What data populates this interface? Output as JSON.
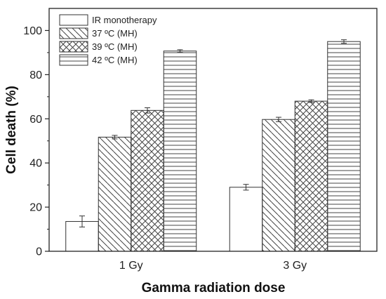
{
  "chart_data": {
    "type": "bar",
    "title": "",
    "xlabel": "Gamma radiation dose",
    "ylabel": "Cell death (%)",
    "ylim": [
      0,
      110
    ],
    "yticks": [
      0,
      20,
      40,
      60,
      80,
      100
    ],
    "categories": [
      "1 Gy",
      "3 Gy"
    ],
    "series": [
      {
        "name": "IR monotherapy",
        "pattern": "none",
        "values": [
          13.5,
          29.0
        ],
        "errors": [
          2.5,
          1.3
        ]
      },
      {
        "name": "37 ºC (MH)",
        "pattern": "diagonal-down",
        "values": [
          51.7,
          59.7
        ],
        "errors": [
          0.8,
          1.0
        ]
      },
      {
        "name": "39 ºC (MH)",
        "pattern": "crosshatch",
        "values": [
          63.8,
          68.0
        ],
        "errors": [
          1.2,
          0.6
        ]
      },
      {
        "name": "42 ºC (MH)",
        "pattern": "horizontal",
        "values": [
          90.7,
          95.0
        ],
        "errors": [
          0.6,
          0.8
        ]
      }
    ],
    "legend_position": "top-left",
    "grid": false,
    "colors": {
      "bar_fill": "#ffffff",
      "bar_stroke": "#333333",
      "hatch": "#444444",
      "axis": "#222222"
    }
  }
}
